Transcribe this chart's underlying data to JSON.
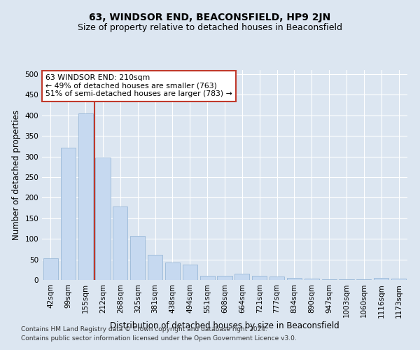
{
  "title": "63, WINDSOR END, BEACONSFIELD, HP9 2JN",
  "subtitle": "Size of property relative to detached houses in Beaconsfield",
  "xlabel": "Distribution of detached houses by size in Beaconsfield",
  "ylabel": "Number of detached properties",
  "categories": [
    "42sqm",
    "99sqm",
    "155sqm",
    "212sqm",
    "268sqm",
    "325sqm",
    "381sqm",
    "438sqm",
    "494sqm",
    "551sqm",
    "608sqm",
    "664sqm",
    "721sqm",
    "777sqm",
    "834sqm",
    "890sqm",
    "947sqm",
    "1003sqm",
    "1060sqm",
    "1116sqm",
    "1173sqm"
  ],
  "values": [
    52,
    322,
    405,
    298,
    178,
    107,
    62,
    42,
    38,
    10,
    10,
    15,
    10,
    8,
    5,
    3,
    2,
    2,
    1,
    5,
    3
  ],
  "bar_color": "#c6d9f0",
  "bar_edge_color": "#9ab8d8",
  "vline_x_index": 2.5,
  "vline_color": "#c0392b",
  "annotation_text": "63 WINDSOR END: 210sqm\n← 49% of detached houses are smaller (763)\n51% of semi-detached houses are larger (783) →",
  "annotation_box_color": "#ffffff",
  "annotation_box_edge_color": "#c0392b",
  "ylim": [
    0,
    510
  ],
  "yticks": [
    0,
    50,
    100,
    150,
    200,
    250,
    300,
    350,
    400,
    450,
    500
  ],
  "background_color": "#dce6f1",
  "plot_bg_color": "#dce6f1",
  "footer": "Contains HM Land Registry data © Crown copyright and database right 2024.\nContains public sector information licensed under the Open Government Licence v3.0.",
  "title_fontsize": 10,
  "subtitle_fontsize": 9,
  "xlabel_fontsize": 8.5,
  "ylabel_fontsize": 8.5,
  "footer_fontsize": 6.5,
  "tick_fontsize": 7.5
}
